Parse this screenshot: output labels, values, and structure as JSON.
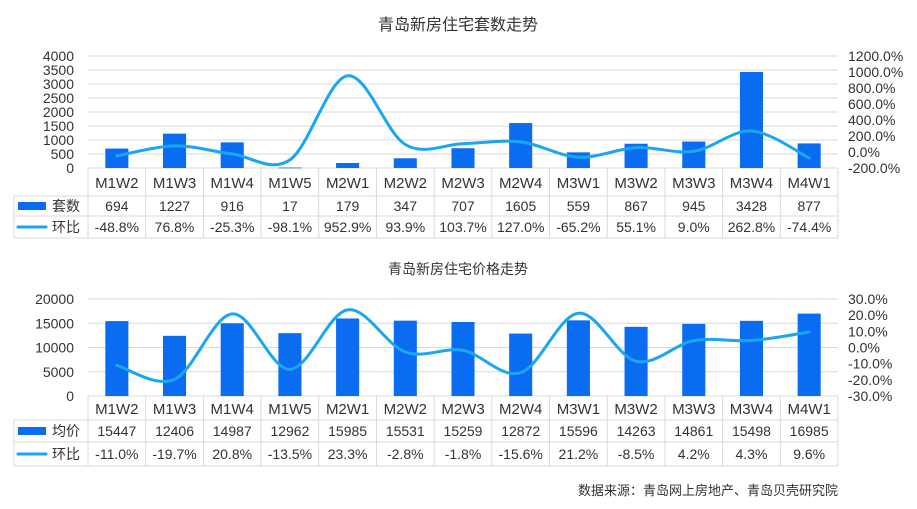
{
  "colors": {
    "bar": "#0a6cf0",
    "line": "#1aa6f0",
    "grid": "#d9d9d9",
    "text": "#333333"
  },
  "source": "数据来源：青岛网上房地产、青岛贝壳研究院",
  "chart_data": [
    {
      "type": "bar+line",
      "title": "青岛新房住宅套数走势",
      "categories": [
        "M1W2",
        "M1W3",
        "M1W4",
        "M1W5",
        "M2W1",
        "M2W2",
        "M2W3",
        "M2W4",
        "M3W1",
        "M3W2",
        "M3W3",
        "M3W4",
        "M4W1"
      ],
      "series": [
        {
          "name": "套数",
          "type": "bar",
          "axis": "left",
          "values": [
            694,
            1227,
            916,
            17,
            179,
            347,
            707,
            1605,
            559,
            867,
            945,
            3428,
            877
          ]
        },
        {
          "name": "环比",
          "type": "line",
          "axis": "right",
          "values": [
            -48.8,
            76.8,
            -25.3,
            -98.1,
            952.9,
            93.9,
            103.7,
            127.0,
            -65.2,
            55.1,
            9.0,
            262.8,
            -74.4
          ],
          "labels": [
            "-48.8%",
            "76.8%",
            "-25.3%",
            "-98.1%",
            "952.9%",
            "93.9%",
            "103.7%",
            "127.0%",
            "-65.2%",
            "55.1%",
            "9.0%",
            "262.8%",
            "-74.4%"
          ]
        }
      ],
      "ylim": [
        0,
        4000
      ],
      "yticks": [
        "0",
        "500",
        "1000",
        "1500",
        "2000",
        "2500",
        "3000",
        "3500",
        "4000"
      ],
      "y2lim": [
        -200,
        1200
      ],
      "y2ticks": [
        "-200.0%",
        "0.0%",
        "200.0%",
        "400.0%",
        "600.0%",
        "800.0%",
        "1000.0%",
        "1200.0%"
      ],
      "grid": true,
      "legend": "data-table"
    },
    {
      "type": "bar+line",
      "title": "青岛新房住宅价格走势",
      "categories": [
        "M1W2",
        "M1W3",
        "M1W4",
        "M1W5",
        "M2W1",
        "M2W2",
        "M2W3",
        "M2W4",
        "M3W1",
        "M3W2",
        "M3W3",
        "M3W4",
        "M4W1"
      ],
      "series": [
        {
          "name": "均价",
          "type": "bar",
          "axis": "left",
          "values": [
            15447,
            12406,
            14987,
            12962,
            15985,
            15531,
            15259,
            12872,
            15596,
            14263,
            14861,
            15498,
            16985
          ]
        },
        {
          "name": "环比",
          "type": "line",
          "axis": "right",
          "values": [
            -11.0,
            -19.7,
            20.8,
            -13.5,
            23.3,
            -2.8,
            -1.8,
            -15.6,
            21.2,
            -8.5,
            4.2,
            4.3,
            9.6
          ],
          "labels": [
            "-11.0%",
            "-19.7%",
            "20.8%",
            "-13.5%",
            "23.3%",
            "-2.8%",
            "-1.8%",
            "-15.6%",
            "21.2%",
            "-8.5%",
            "4.2%",
            "4.3%",
            "9.6%"
          ]
        }
      ],
      "ylim": [
        0,
        20000
      ],
      "yticks": [
        "0",
        "5000",
        "10000",
        "15000",
        "20000"
      ],
      "y2lim": [
        -30,
        30
      ],
      "y2ticks": [
        "-30.0%",
        "-20.0%",
        "-10.0%",
        "0.0%",
        "10.0%",
        "20.0%",
        "30.0%"
      ],
      "grid": true,
      "legend": "data-table"
    }
  ]
}
